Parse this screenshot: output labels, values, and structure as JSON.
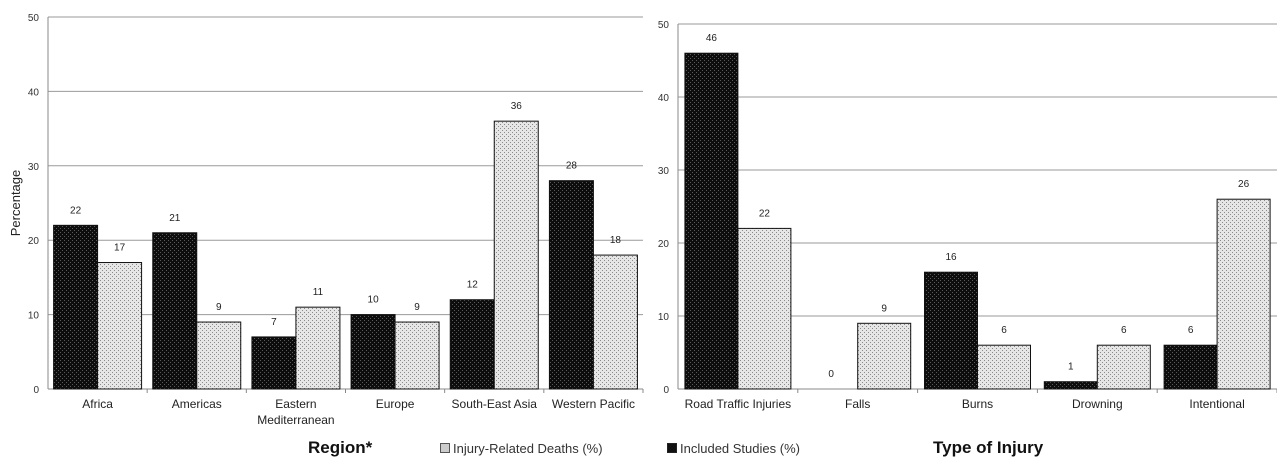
{
  "chart_data": [
    {
      "type": "bar",
      "xlabel": "Region*",
      "ylabel": "Percentage",
      "ylim": [
        0,
        50
      ],
      "yticks": [
        0,
        10,
        20,
        30,
        40,
        50
      ],
      "grid": true,
      "categories": [
        [
          "Africa"
        ],
        [
          "Americas"
        ],
        [
          "Eastern",
          "Mediterranean"
        ],
        [
          "Europe"
        ],
        [
          "South-East Asia"
        ],
        [
          "Western Pacific"
        ]
      ],
      "series": [
        {
          "name": "Included Studies (%)",
          "pattern": "dark",
          "values": [
            22,
            21,
            7,
            10,
            12,
            28
          ]
        },
        {
          "name": "Injury-Related Deaths (%)",
          "pattern": "light",
          "values": [
            17,
            9,
            11,
            9,
            36,
            18
          ]
        }
      ]
    },
    {
      "type": "bar",
      "xlabel": "Type of Injury",
      "ylabel": "",
      "ylim": [
        0,
        50
      ],
      "yticks": [
        0,
        10,
        20,
        30,
        40,
        50
      ],
      "grid": true,
      "categories": [
        [
          "Road Traffic Injuries"
        ],
        [
          "Falls"
        ],
        [
          "Burns"
        ],
        [
          "Drowning"
        ],
        [
          "Intentional"
        ]
      ],
      "series": [
        {
          "name": "Included Studies (%)",
          "pattern": "dark",
          "values": [
            46,
            0,
            16,
            1,
            6
          ]
        },
        {
          "name": "Injury-Related Deaths (%)",
          "pattern": "light",
          "values": [
            22,
            9,
            6,
            6,
            26
          ]
        }
      ]
    }
  ],
  "legend": {
    "placement": "bottom",
    "items": [
      {
        "label": "Injury-Related Deaths (%)",
        "pattern": "light"
      },
      {
        "label": "Included Studies (%)",
        "pattern": "dark"
      }
    ]
  }
}
